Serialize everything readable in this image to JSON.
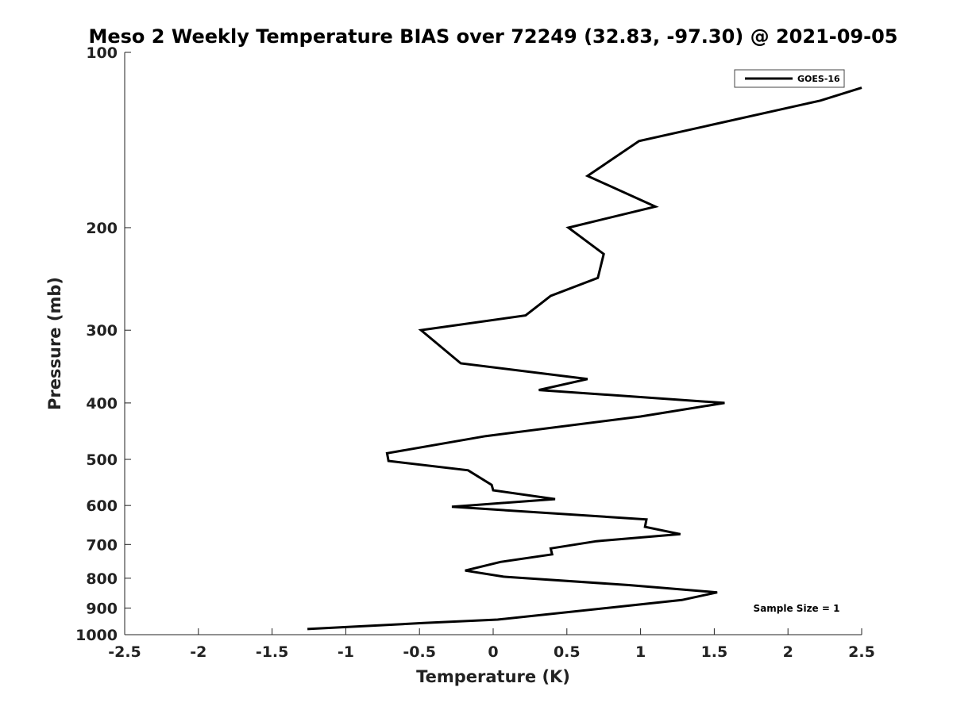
{
  "chart_data": {
    "type": "line",
    "title": "Meso 2 Weekly Temperature BIAS over 72249 (32.83, -97.30) @ 2021-09-05",
    "xlabel": "Temperature (K)",
    "ylabel": "Pressure (mb)",
    "xlim": [
      -2.5,
      2.5
    ],
    "ylim": [
      100,
      1000
    ],
    "y_scale": "log",
    "y_reversed": true,
    "x_ticks": [
      "-2.5",
      "-2",
      "-1.5",
      "-1",
      "-0.5",
      "0",
      "0.5",
      "1",
      "1.5",
      "2",
      "2.5"
    ],
    "y_ticks": [
      "100",
      "200",
      "300",
      "400",
      "500",
      "600",
      "700",
      "800",
      "900",
      "1000"
    ],
    "grid": false,
    "legend": {
      "position": "top-right",
      "entries": [
        "GOES-16"
      ]
    },
    "annotation": "Sample Size = 1",
    "series": [
      {
        "name": "GOES-16",
        "color": "#000000",
        "points": [
          [
            2.5,
            115
          ],
          [
            2.22,
            121
          ],
          [
            0.99,
            142
          ],
          [
            0.64,
            163
          ],
          [
            1.1,
            184
          ],
          [
            0.51,
            200
          ],
          [
            0.75,
            222
          ],
          [
            0.71,
            244
          ],
          [
            0.39,
            262
          ],
          [
            0.22,
            283
          ],
          [
            -0.49,
            300
          ],
          [
            -0.22,
            342
          ],
          [
            0.64,
            364
          ],
          [
            0.31,
            380
          ],
          [
            1.57,
            400
          ],
          [
            1.0,
            422
          ],
          [
            -0.05,
            456
          ],
          [
            -0.72,
            488
          ],
          [
            -0.71,
            503
          ],
          [
            -0.17,
            522
          ],
          [
            -0.01,
            553
          ],
          [
            0.0,
            565
          ],
          [
            0.42,
            585
          ],
          [
            -0.28,
            603
          ],
          [
            1.04,
            634
          ],
          [
            1.03,
            653
          ],
          [
            1.27,
            672
          ],
          [
            0.7,
            691
          ],
          [
            0.39,
            711
          ],
          [
            0.4,
            728
          ],
          [
            0.05,
            750
          ],
          [
            -0.19,
            776
          ],
          [
            0.07,
            795
          ],
          [
            0.92,
            822
          ],
          [
            1.52,
            846
          ],
          [
            1.28,
            872
          ],
          [
            0.03,
            942
          ],
          [
            -0.47,
            955
          ],
          [
            -1.26,
            978
          ]
        ]
      }
    ]
  }
}
